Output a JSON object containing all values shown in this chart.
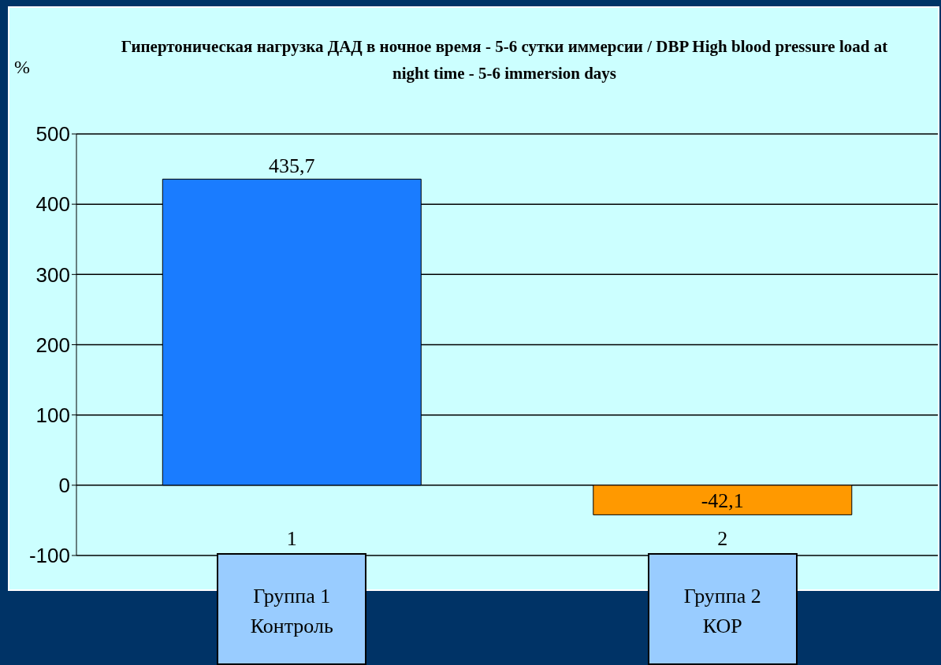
{
  "chart_data": {
    "type": "bar",
    "title": "Гипертоническая нагрузка ДАД в ночное время - 5-6 сутки иммерсии / DBP High blood pressure load at night time - 5-6 immersion days",
    "ylabel": "%",
    "categories": [
      "1",
      "2"
    ],
    "values": [
      435.7,
      -42.1
    ],
    "colors": [
      "#1a7cff",
      "#ff9900"
    ],
    "value_labels": [
      "435,7",
      "-42,1"
    ],
    "ylim": [
      -100,
      500
    ],
    "yticks": [
      -100,
      0,
      100,
      200,
      300,
      400,
      500
    ],
    "grid": "y",
    "annotations": [
      "Группа 1\nКонтроль",
      "Группа 2\nКОР"
    ]
  }
}
